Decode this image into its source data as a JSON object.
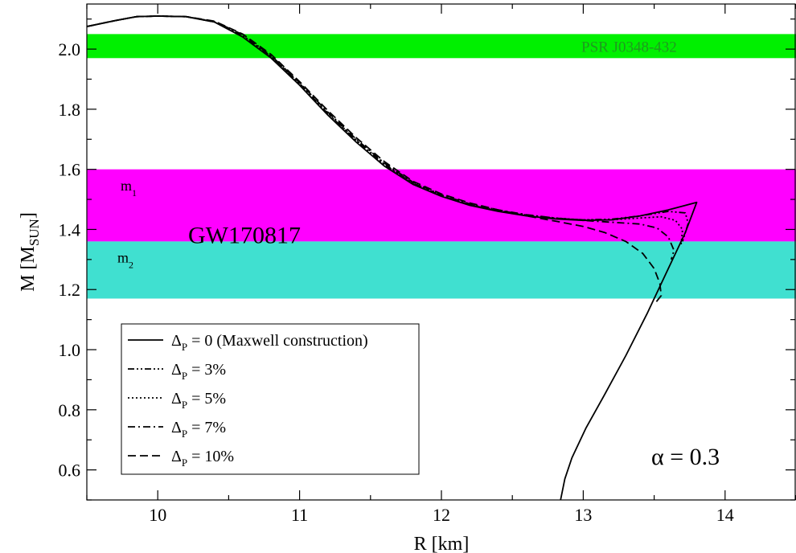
{
  "chart_data": {
    "type": "line",
    "title": "",
    "xlabel": "R [km]",
    "ylabel": {
      "main": "M [M",
      "sub": "SUN",
      "end": "]"
    },
    "xlim": [
      9.5,
      14.5
    ],
    "ylim": [
      0.5,
      2.15
    ],
    "xticks": [
      10,
      11,
      12,
      13,
      14
    ],
    "yticks": [
      0.6,
      0.8,
      1.0,
      1.2,
      1.4,
      1.6,
      1.8,
      2.0
    ],
    "grid": false,
    "legend_position": "bottom-left",
    "bands": [
      {
        "name": "PSR J0348-432",
        "y0": 1.97,
        "y1": 2.05,
        "color": "#00f000",
        "label_color": "#1f9a1f"
      },
      {
        "name": "m1",
        "y0": 1.36,
        "y1": 1.6,
        "color": "#ff00ff"
      },
      {
        "name": "m2",
        "y0": 1.17,
        "y1": 1.36,
        "color": "#40e0d0"
      }
    ],
    "band_labels": {
      "m1": {
        "main": "m",
        "sub": "1"
      },
      "m2": {
        "main": "m",
        "sub": "2"
      }
    },
    "annotations": {
      "gw": "GW170817",
      "alpha": "α = 0.3"
    },
    "series": [
      {
        "name": {
          "main": "Δ",
          "sub": "P",
          "rest": " = 0 (Maxwell construction)"
        },
        "dash": "solid",
        "points": [
          [
            9.5,
            2.075
          ],
          [
            9.7,
            2.095
          ],
          [
            9.85,
            2.108
          ],
          [
            10.0,
            2.11
          ],
          [
            10.2,
            2.108
          ],
          [
            10.4,
            2.09
          ],
          [
            10.6,
            2.04
          ],
          [
            10.8,
            1.97
          ],
          [
            11.0,
            1.88
          ],
          [
            11.2,
            1.78
          ],
          [
            11.4,
            1.69
          ],
          [
            11.6,
            1.61
          ],
          [
            11.8,
            1.55
          ],
          [
            12.0,
            1.51
          ],
          [
            12.2,
            1.48
          ],
          [
            12.4,
            1.46
          ],
          [
            12.6,
            1.445
          ],
          [
            12.8,
            1.435
          ],
          [
            13.0,
            1.43
          ],
          [
            13.2,
            1.432
          ],
          [
            13.4,
            1.445
          ],
          [
            13.6,
            1.465
          ],
          [
            13.8,
            1.49
          ],
          [
            13.72,
            1.39
          ],
          [
            13.6,
            1.27
          ],
          [
            13.45,
            1.12
          ],
          [
            13.3,
            0.98
          ],
          [
            13.15,
            0.85
          ],
          [
            13.02,
            0.74
          ],
          [
            12.92,
            0.64
          ],
          [
            12.87,
            0.57
          ],
          [
            12.84,
            0.5
          ]
        ]
      },
      {
        "name": {
          "main": "Δ",
          "sub": "P",
          "rest": " = 3%"
        },
        "dash": "8,3,2,3,2,3",
        "points": [
          [
            9.5,
            2.075
          ],
          [
            9.7,
            2.095
          ],
          [
            9.85,
            2.108
          ],
          [
            10.0,
            2.11
          ],
          [
            10.2,
            2.108
          ],
          [
            10.4,
            2.09
          ],
          [
            10.6,
            2.045
          ],
          [
            10.8,
            1.975
          ],
          [
            11.0,
            1.885
          ],
          [
            11.2,
            1.785
          ],
          [
            11.4,
            1.695
          ],
          [
            11.6,
            1.615
          ],
          [
            11.8,
            1.553
          ],
          [
            12.0,
            1.512
          ],
          [
            12.2,
            1.482
          ],
          [
            12.4,
            1.462
          ],
          [
            12.6,
            1.447
          ],
          [
            12.8,
            1.437
          ],
          [
            13.0,
            1.432
          ],
          [
            13.2,
            1.434
          ],
          [
            13.4,
            1.445
          ],
          [
            13.6,
            1.46
          ],
          [
            13.72,
            1.455
          ],
          [
            13.74,
            1.42
          ],
          [
            13.7,
            1.36
          ]
        ]
      },
      {
        "name": {
          "main": "Δ",
          "sub": "P",
          "rest": " = 5%"
        },
        "dash": "2,3",
        "points": [
          [
            9.5,
            2.075
          ],
          [
            9.7,
            2.095
          ],
          [
            9.85,
            2.108
          ],
          [
            10.0,
            2.11
          ],
          [
            10.2,
            2.108
          ],
          [
            10.4,
            2.09
          ],
          [
            10.6,
            2.045
          ],
          [
            10.8,
            1.975
          ],
          [
            11.0,
            1.886
          ],
          [
            11.2,
            1.787
          ],
          [
            11.4,
            1.697
          ],
          [
            11.6,
            1.617
          ],
          [
            11.8,
            1.555
          ],
          [
            12.0,
            1.513
          ],
          [
            12.2,
            1.483
          ],
          [
            12.4,
            1.463
          ],
          [
            12.6,
            1.448
          ],
          [
            12.8,
            1.438
          ],
          [
            13.0,
            1.432
          ],
          [
            13.2,
            1.432
          ],
          [
            13.4,
            1.438
          ],
          [
            13.55,
            1.442
          ],
          [
            13.65,
            1.43
          ],
          [
            13.7,
            1.4
          ],
          [
            13.69,
            1.35
          ]
        ]
      },
      {
        "name": {
          "main": "Δ",
          "sub": "P",
          "rest": " = 7%"
        },
        "dash": "9,4,2,4",
        "points": [
          [
            9.5,
            2.075
          ],
          [
            9.7,
            2.095
          ],
          [
            9.85,
            2.108
          ],
          [
            10.0,
            2.11
          ],
          [
            10.2,
            2.108
          ],
          [
            10.4,
            2.092
          ],
          [
            10.6,
            2.048
          ],
          [
            10.8,
            1.978
          ],
          [
            11.0,
            1.888
          ],
          [
            11.2,
            1.79
          ],
          [
            11.4,
            1.7
          ],
          [
            11.6,
            1.62
          ],
          [
            11.8,
            1.557
          ],
          [
            12.0,
            1.515
          ],
          [
            12.2,
            1.485
          ],
          [
            12.4,
            1.465
          ],
          [
            12.6,
            1.449
          ],
          [
            12.8,
            1.438
          ],
          [
            13.0,
            1.43
          ],
          [
            13.2,
            1.424
          ],
          [
            13.4,
            1.418
          ],
          [
            13.52,
            1.405
          ],
          [
            13.6,
            1.375
          ],
          [
            13.64,
            1.33
          ],
          [
            13.62,
            1.3
          ]
        ]
      },
      {
        "name": {
          "main": "Δ",
          "sub": "P",
          "rest": " = 10%"
        },
        "dash": "10,5",
        "points": [
          [
            9.5,
            2.075
          ],
          [
            9.7,
            2.095
          ],
          [
            9.85,
            2.108
          ],
          [
            10.0,
            2.11
          ],
          [
            10.2,
            2.108
          ],
          [
            10.4,
            2.093
          ],
          [
            10.6,
            2.05
          ],
          [
            10.8,
            1.982
          ],
          [
            11.0,
            1.892
          ],
          [
            11.2,
            1.795
          ],
          [
            11.4,
            1.705
          ],
          [
            11.6,
            1.625
          ],
          [
            11.8,
            1.56
          ],
          [
            12.0,
            1.518
          ],
          [
            12.2,
            1.488
          ],
          [
            12.4,
            1.465
          ],
          [
            12.6,
            1.445
          ],
          [
            12.8,
            1.428
          ],
          [
            13.0,
            1.41
          ],
          [
            13.15,
            1.39
          ],
          [
            13.3,
            1.36
          ],
          [
            13.42,
            1.32
          ],
          [
            13.5,
            1.27
          ],
          [
            13.54,
            1.22
          ],
          [
            13.55,
            1.18
          ],
          [
            13.5,
            1.15
          ]
        ]
      }
    ]
  }
}
